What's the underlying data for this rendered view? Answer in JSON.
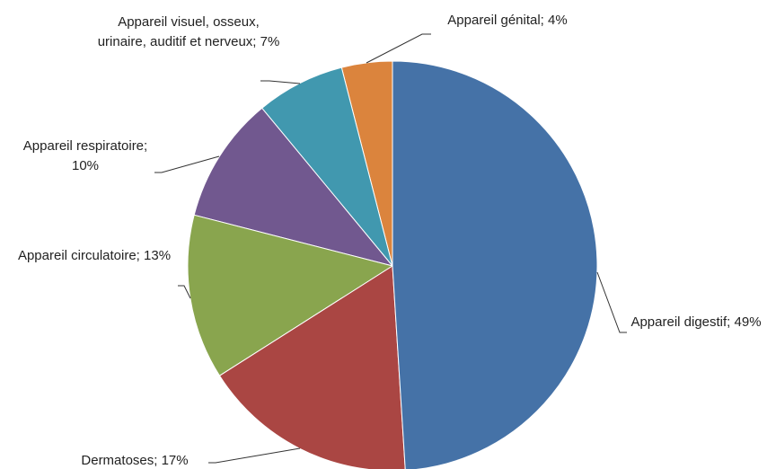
{
  "chart_data": {
    "type": "pie",
    "values": [
      49,
      17,
      13,
      10,
      7,
      4
    ],
    "value_labels": [
      "Appareil digestif; 49%",
      "Dermatoses; 17%",
      "Appareil circulatoire; 13%",
      "Appareil respiratoire; 10%",
      "Appareil visuel, osseux, urinaire, auditif et nerveux; 7%",
      "Appareil génital; 4%"
    ],
    "colors": [
      "#4572a7",
      "#aa4643",
      "#89a54e",
      "#71588f",
      "#4198af",
      "#db843d"
    ]
  }
}
